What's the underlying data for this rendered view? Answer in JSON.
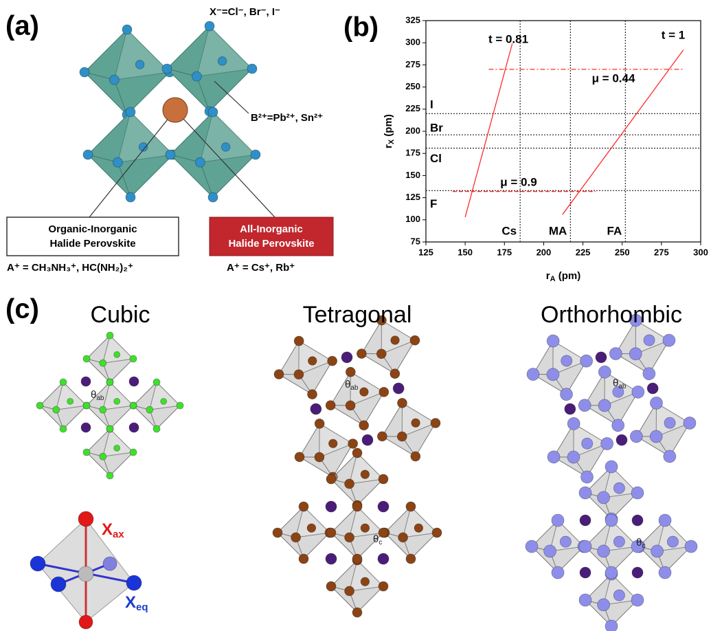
{
  "panel_a": {
    "label": "(a)",
    "x_site": "X⁻=Cl⁻, Br⁻, I⁻",
    "b_site": "B²⁺=Pb²⁺, Sn²⁺",
    "organic_box": [
      "Organic-Inorganic",
      "Halide Perovskite"
    ],
    "inorganic_box": [
      "All-Inorganic",
      "Halide Perovskite"
    ],
    "organic_a_site": "A⁺ = CH₃NH₃⁺, HC(NH₂)₂⁺",
    "inorganic_a_site": "A⁺ = Cs⁺, Rb⁺"
  },
  "chart_data": {
    "type": "line",
    "label": "(b)",
    "xlabel": {
      "main": "r",
      "sub": "A",
      "unit": " (pm)"
    },
    "ylabel": {
      "main": "r",
      "sub": "X",
      "unit": " (pm)"
    },
    "xlim": [
      125,
      300
    ],
    "ylim": [
      75,
      325
    ],
    "xticks": [
      125,
      150,
      175,
      200,
      225,
      250,
      275,
      300
    ],
    "yticks": [
      75,
      100,
      125,
      150,
      175,
      200,
      225,
      250,
      275,
      300,
      325
    ],
    "series": [
      {
        "name": "t = 0.81",
        "color": "#ff2a2a",
        "dash": "solid",
        "x": [
          150,
          180
        ],
        "values": [
          103,
          299
        ]
      },
      {
        "name": "t = 1",
        "color": "#ff2a2a",
        "dash": "solid",
        "x": [
          212,
          289
        ],
        "values": [
          106,
          292
        ]
      },
      {
        "name": "μ = 0.44",
        "color": "#ff2a2a",
        "dash": "dashdot",
        "x": [
          165,
          289
        ],
        "values": [
          270,
          270
        ]
      },
      {
        "name": "μ = 0.9",
        "color": "#ff2a2a",
        "dash": "dashed",
        "x": [
          142,
          233
        ],
        "values": [
          132,
          132
        ]
      }
    ],
    "horizontal_lines": [
      {
        "label": "I",
        "value": 220
      },
      {
        "label": "Br",
        "value": 196
      },
      {
        "label": "Cl",
        "value": 181
      },
      {
        "label": "F",
        "value": 133
      }
    ],
    "vertical_lines": [
      {
        "label": "Cs",
        "value": 185
      },
      {
        "label": "MA",
        "value": 217
      },
      {
        "label": "FA",
        "value": 252
      }
    ],
    "reference_color": "#000000"
  },
  "panel_c": {
    "label": "(c)",
    "phases": [
      {
        "title": "Cubic",
        "angle_top": {
          "symbol": "θ",
          "sub": "ab"
        }
      },
      {
        "title": "Tetragonal",
        "angle_top": {
          "symbol": "θ",
          "sub": "ab"
        },
        "angle_bottom": {
          "symbol": "θ",
          "sub": "c"
        }
      },
      {
        "title": "Orthorhombic",
        "angle_top": {
          "symbol": "θ",
          "sub": "ab"
        },
        "angle_bottom": {
          "symbol": "θ",
          "sub": "c"
        }
      }
    ],
    "octahedron": {
      "axial": {
        "symbol": "X",
        "sub": "ax"
      },
      "equatorial": {
        "symbol": "X",
        "sub": "eq"
      }
    }
  }
}
